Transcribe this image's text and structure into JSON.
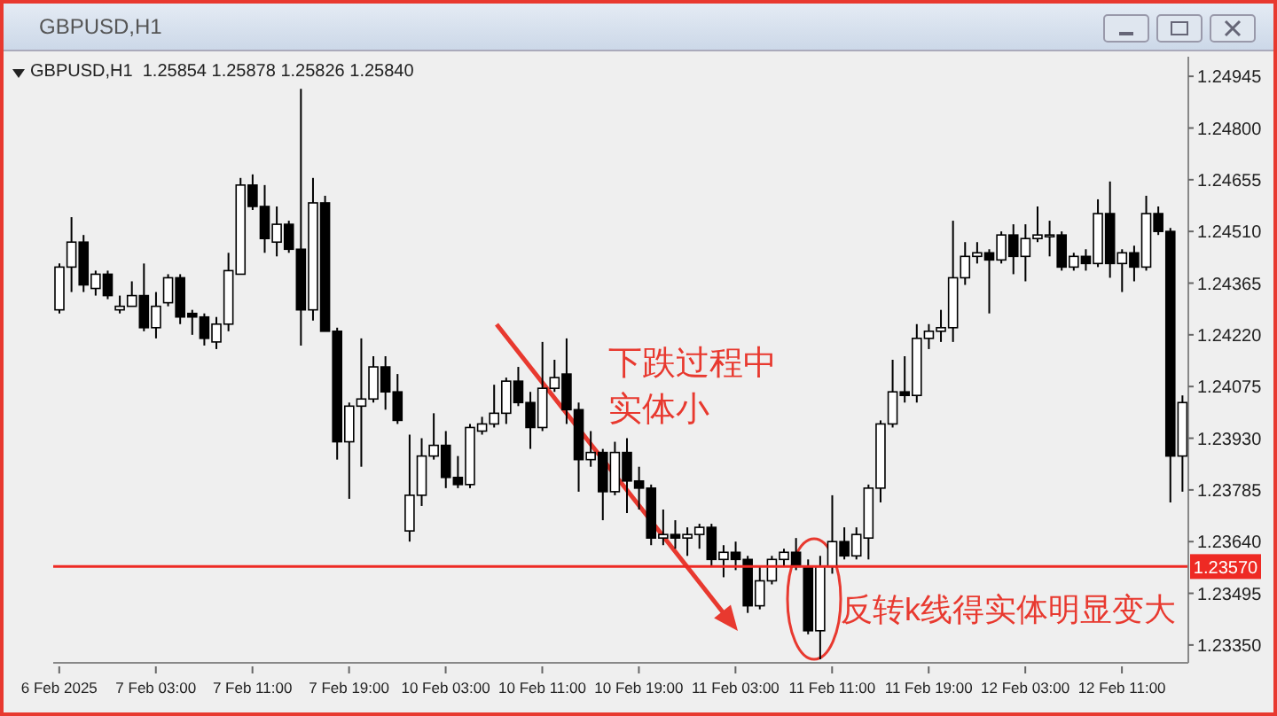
{
  "chart_data": {
    "type": "candlestick",
    "title": "GBPUSD,H1",
    "subtitle": "GBPUSD,H1  1.25854 1.25878 1.25826 1.25840",
    "categories": [
      "6 Feb 2025",
      null,
      null,
      null,
      null,
      null,
      null,
      null,
      "7 Feb 03:00",
      null,
      null,
      null,
      null,
      null,
      null,
      null,
      "7 Feb 11:00",
      null,
      null,
      null,
      null,
      null,
      null,
      null,
      "7 Feb 19:00",
      null,
      null,
      null,
      null,
      null,
      null,
      null,
      "10 Feb 03:00",
      null,
      null,
      null,
      null,
      null,
      null,
      null,
      "10 Feb 11:00",
      null,
      null,
      null,
      null,
      null,
      null,
      null,
      "10 Feb 19:00",
      null,
      null,
      null,
      null,
      null,
      null,
      null,
      "11 Feb 03:00",
      null,
      null,
      null,
      null,
      null,
      null,
      null,
      "11 Feb 11:00",
      null,
      null,
      null,
      null,
      null,
      null,
      null,
      "11 Feb 19:00",
      null,
      null,
      null,
      null,
      null,
      null,
      null,
      "12 Feb 03:00",
      null,
      null,
      null,
      null,
      null,
      null,
      null,
      "12 Feb 11:00",
      null,
      null,
      null,
      null,
      null
    ],
    "ohlc": [
      [
        1.2429,
        1.2442,
        1.2428,
        1.2441
      ],
      [
        1.2441,
        1.2455,
        1.2434,
        1.2448
      ],
      [
        1.2448,
        1.245,
        1.2434,
        1.2436
      ],
      [
        1.2435,
        1.244,
        1.2433,
        1.2439
      ],
      [
        1.2439,
        1.244,
        1.2432,
        1.2433
      ],
      [
        1.2429,
        1.2433,
        1.2428,
        1.243
      ],
      [
        1.243,
        1.2437,
        1.243,
        1.2433
      ],
      [
        1.2433,
        1.2442,
        1.2423,
        1.2424
      ],
      [
        1.2424,
        1.2434,
        1.2421,
        1.243
      ],
      [
        1.2431,
        1.2439,
        1.243,
        1.2438
      ],
      [
        1.2438,
        1.2439,
        1.2425,
        1.2427
      ],
      [
        1.2428,
        1.2429,
        1.2422,
        1.2427
      ],
      [
        1.2427,
        1.2428,
        1.2419,
        1.2421
      ],
      [
        1.242,
        1.2427,
        1.2418,
        1.2425
      ],
      [
        1.2425,
        1.2445,
        1.2423,
        1.244
      ],
      [
        1.2439,
        1.2466,
        1.2439,
        1.2464
      ],
      [
        1.2464,
        1.2467,
        1.2457,
        1.2458
      ],
      [
        1.2458,
        1.2464,
        1.2445,
        1.2449
      ],
      [
        1.2448,
        1.2458,
        1.2444,
        1.2453
      ],
      [
        1.2453,
        1.2454,
        1.2445,
        1.2446
      ],
      [
        1.2446,
        1.2491,
        1.2419,
        1.2429
      ],
      [
        1.2429,
        1.2466,
        1.2426,
        1.2459
      ],
      [
        1.2459,
        1.2461,
        1.2423,
        1.2423
      ],
      [
        1.2423,
        1.2424,
        1.2387,
        1.2392
      ],
      [
        1.2392,
        1.2403,
        1.2376,
        1.2402
      ],
      [
        1.2402,
        1.2421,
        1.2385,
        1.2404
      ],
      [
        1.2404,
        1.2416,
        1.2403,
        1.2413
      ],
      [
        1.2413,
        1.2416,
        1.2401,
        1.2406
      ],
      [
        1.2406,
        1.2411,
        1.2397,
        1.2398
      ],
      [
        1.2367,
        1.2394,
        1.2364,
        1.2377
      ],
      [
        1.2377,
        1.2393,
        1.2374,
        1.2388
      ],
      [
        1.2388,
        1.24,
        1.2387,
        1.2391
      ],
      [
        1.2391,
        1.2395,
        1.2379,
        1.2382
      ],
      [
        1.2382,
        1.2388,
        1.2379,
        1.238
      ],
      [
        1.238,
        1.2397,
        1.2379,
        1.2396
      ],
      [
        1.2395,
        1.2399,
        1.2394,
        1.2397
      ],
      [
        1.2397,
        1.2408,
        1.2396,
        1.24
      ],
      [
        1.24,
        1.241,
        1.2397,
        1.2409
      ],
      [
        1.2409,
        1.2413,
        1.2402,
        1.2403
      ],
      [
        1.2403,
        1.2406,
        1.239,
        1.2396
      ],
      [
        1.2396,
        1.242,
        1.2395,
        1.2407
      ],
      [
        1.2407,
        1.2415,
        1.2406,
        1.241
      ],
      [
        1.2411,
        1.2421,
        1.2397,
        1.2401
      ],
      [
        1.2401,
        1.2403,
        1.2378,
        1.2387
      ],
      [
        1.2387,
        1.2395,
        1.2385,
        1.2389
      ],
      [
        1.2389,
        1.239,
        1.237,
        1.2378
      ],
      [
        1.2378,
        1.2392,
        1.2377,
        1.2389
      ],
      [
        1.2389,
        1.2393,
        1.2372,
        1.2381
      ],
      [
        1.2381,
        1.2385,
        1.2373,
        1.2379
      ],
      [
        1.2379,
        1.238,
        1.2363,
        1.2365
      ],
      [
        1.2365,
        1.2373,
        1.2363,
        1.2366
      ],
      [
        1.2366,
        1.237,
        1.2362,
        1.2365
      ],
      [
        1.2365,
        1.2368,
        1.236,
        1.2366
      ],
      [
        1.2366,
        1.2369,
        1.2362,
        1.2368
      ],
      [
        1.2368,
        1.2369,
        1.2357,
        1.2359
      ],
      [
        1.2359,
        1.2363,
        1.2354,
        1.2361
      ],
      [
        1.2361,
        1.2364,
        1.2356,
        1.2359
      ],
      [
        1.2359,
        1.236,
        1.2344,
        1.2346
      ],
      [
        1.2346,
        1.2357,
        1.2345,
        1.2353
      ],
      [
        1.2353,
        1.236,
        1.2352,
        1.2359
      ],
      [
        1.2359,
        1.2362,
        1.2357,
        1.2361
      ],
      [
        1.2361,
        1.2365,
        1.2356,
        1.2357
      ],
      [
        1.2357,
        1.2359,
        1.2338,
        1.2339
      ],
      [
        1.2339,
        1.236,
        1.2331,
        1.2357
      ],
      [
        1.2357,
        1.2377,
        1.2355,
        1.2364
      ],
      [
        1.2364,
        1.2368,
        1.2359,
        1.236
      ],
      [
        1.236,
        1.2368,
        1.2359,
        1.2366
      ],
      [
        1.2365,
        1.238,
        1.2359,
        1.2379
      ],
      [
        1.2379,
        1.2398,
        1.2375,
        1.2397
      ],
      [
        1.2397,
        1.2415,
        1.2396,
        1.2406
      ],
      [
        1.2406,
        1.2416,
        1.2403,
        1.2405
      ],
      [
        1.2405,
        1.2425,
        1.2403,
        1.2421
      ],
      [
        1.2421,
        1.2425,
        1.2418,
        1.2423
      ],
      [
        1.2423,
        1.2429,
        1.242,
        1.2424
      ],
      [
        1.2424,
        1.2454,
        1.242,
        1.2438
      ],
      [
        1.2438,
        1.2448,
        1.2436,
        1.2444
      ],
      [
        1.2444,
        1.2448,
        1.2442,
        1.2445
      ],
      [
        1.2445,
        1.2446,
        1.2428,
        1.2443
      ],
      [
        1.2443,
        1.2451,
        1.2442,
        1.245
      ],
      [
        1.245,
        1.2453,
        1.2439,
        1.2444
      ],
      [
        1.2444,
        1.2453,
        1.2437,
        1.2449
      ],
      [
        1.2449,
        1.2458,
        1.2448,
        1.245
      ],
      [
        1.245,
        1.2454,
        1.2444,
        1.245
      ],
      [
        1.245,
        1.2451,
        1.244,
        1.2441
      ],
      [
        1.2441,
        1.2445,
        1.244,
        1.2444
      ],
      [
        1.2444,
        1.2446,
        1.244,
        1.2442
      ],
      [
        1.2442,
        1.246,
        1.2441,
        1.2456
      ],
      [
        1.2456,
        1.2465,
        1.2438,
        1.2442
      ],
      [
        1.2442,
        1.2446,
        1.2434,
        1.2445
      ],
      [
        1.2445,
        1.2447,
        1.2437,
        1.2441
      ],
      [
        1.2441,
        1.2461,
        1.244,
        1.2456
      ],
      [
        1.2456,
        1.2458,
        1.245,
        1.2451
      ],
      [
        1.2451,
        1.2452,
        1.2375,
        1.2388
      ],
      [
        1.2388,
        1.2405,
        1.2378,
        1.2403
      ]
    ],
    "ylim": [
      1.233,
      1.25
    ],
    "yticks": [
      1.24945,
      {
        "value": 1.248,
        "label": "1.24800"
      },
      1.24655,
      {
        "value": 1.2451,
        "label": "1.24510"
      },
      1.24365,
      {
        "value": 1.2422,
        "label": "1.24220"
      },
      1.24075,
      {
        "value": 1.2393,
        "label": "1.23930"
      },
      1.23785,
      {
        "value": 1.2364,
        "label": "1.23640"
      },
      1.23495,
      {
        "value": 1.2335,
        "label": "1.23350"
      }
    ],
    "ref_lines": [
      {
        "axis": "y",
        "value": 1.2357,
        "label": "1.23570",
        "color": "#ee2a24"
      }
    ],
    "annotations": [
      "下跌过程中实体小",
      "反转k线得实体明显变大"
    ]
  }
}
